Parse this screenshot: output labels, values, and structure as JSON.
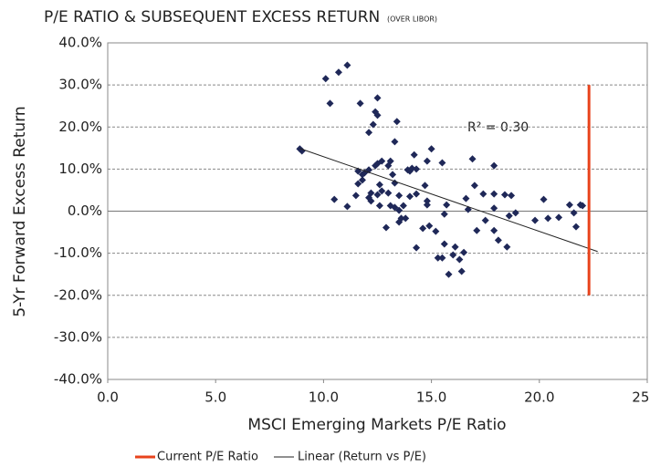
{
  "chart_data": {
    "type": "scatter",
    "title": "P/E RATIO & SUBSEQUENT EXCESS RETURN",
    "subtitle": "(OVER LIBOR)",
    "x_label": "MSCI Emerging Markets P/E Ratio",
    "y_label": "5-Yr Forward Excess Return",
    "annotation": "R² = 0.30",
    "xlim": [
      0,
      25
    ],
    "ylim": [
      -40,
      40
    ],
    "xticks": [
      {
        "value": 0,
        "label": "0.0"
      },
      {
        "value": 5,
        "label": "5.0"
      },
      {
        "value": 10,
        "label": "10.0"
      },
      {
        "value": 15,
        "label": "15.0"
      },
      {
        "value": 20,
        "label": "20.0"
      },
      {
        "value": 25,
        "label": "25.0"
      }
    ],
    "yticks": [
      {
        "value": -40,
        "label": "-40.0%"
      },
      {
        "value": -30,
        "label": "-30.0%"
      },
      {
        "value": -20,
        "label": "-20.0%"
      },
      {
        "value": -10,
        "label": "-10.0%"
      },
      {
        "value": 0,
        "label": "0.0%"
      },
      {
        "value": 10,
        "label": "10.0%"
      },
      {
        "value": 20,
        "label": "20.0%"
      },
      {
        "value": 30,
        "label": "30.0%"
      },
      {
        "value": 40,
        "label": "40.0%"
      }
    ],
    "grid": true,
    "legend": "bottom",
    "series": [
      {
        "color": "#1f2858",
        "x": [
          8.9,
          9.0,
          10.1,
          10.3,
          10.7,
          11.1,
          10.5,
          11.1,
          11.5,
          11.7,
          11.6,
          11.8,
          11.9,
          11.6,
          11.8,
          12.1,
          12.1,
          12.1,
          12.3,
          12.5,
          12.5,
          12.4,
          12.2,
          12.2,
          12.4,
          12.5,
          12.6,
          12.5,
          12.7,
          12.6,
          12.7,
          12.9,
          13.0,
          13.0,
          13.1,
          13.3,
          13.1,
          13.2,
          13.3,
          13.4,
          13.3,
          13.5,
          13.6,
          13.5,
          13.7,
          13.9,
          14.0,
          14.1,
          14.0,
          13.8,
          13.5,
          14.2,
          14.3,
          14.3,
          14.6,
          14.3,
          14.7,
          14.8,
          14.8,
          14.8,
          15.0,
          14.9,
          15.2,
          15.3,
          15.5,
          15.5,
          15.6,
          15.7,
          15.6,
          15.8,
          16.0,
          16.1,
          16.3,
          16.4,
          16.5,
          16.6,
          16.7,
          16.9,
          17.0,
          17.1,
          17.4,
          17.5,
          17.9,
          17.9,
          18.1,
          17.9,
          17.9,
          18.4,
          18.6,
          18.5,
          18.7,
          18.9,
          19.8,
          20.2,
          20.4,
          20.9,
          21.4,
          21.6,
          21.7,
          21.9,
          22.0
        ],
        "values": [
          14.8,
          14.3,
          31.5,
          25.6,
          33,
          34.7,
          2.8,
          1.1,
          3.7,
          25.6,
          9.5,
          8.7,
          9.1,
          6.5,
          7.4,
          3.2,
          9.8,
          18.7,
          20.6,
          22.8,
          26.9,
          23.6,
          4.3,
          2.4,
          10.8,
          11.3,
          6.3,
          3.9,
          4.8,
          1.3,
          11.9,
          -3.9,
          10.8,
          4.3,
          1.3,
          0.9,
          11.9,
          8.7,
          6.7,
          21.3,
          16.5,
          -2.6,
          -1.7,
          0.2,
          1.3,
          9.8,
          9.5,
          10.2,
          3.5,
          -1.7,
          3.7,
          13.4,
          10.0,
          4.1,
          -4.1,
          -8.7,
          6.1,
          11.9,
          2.4,
          1.5,
          14.8,
          -3.5,
          -4.8,
          -11.1,
          -11.1,
          11.5,
          -0.7,
          1.5,
          -7.8,
          -15.0,
          -10.4,
          -8.5,
          -11.5,
          -14.3,
          -9.8,
          3.0,
          0.4,
          12.4,
          6.1,
          -4.6,
          4.1,
          -2.2,
          0.7,
          -4.6,
          -6.9,
          10.8,
          4.1,
          3.9,
          -1.1,
          -8.5,
          3.7,
          -0.4,
          -2.2,
          2.8,
          -1.7,
          -1.5,
          1.5,
          -0.4,
          -3.7,
          1.5,
          1.3
        ]
      }
    ],
    "current_pe": {
      "name": "Current P/E Ratio",
      "color": "#e8431c",
      "x": 22.3,
      "y": [
        -20,
        30
      ]
    },
    "trendline": {
      "name": "Linear (Return vs P/E)",
      "color": "#222222",
      "x": [
        8.9,
        22.7
      ],
      "y": [
        14.9,
        -9.6
      ]
    }
  }
}
